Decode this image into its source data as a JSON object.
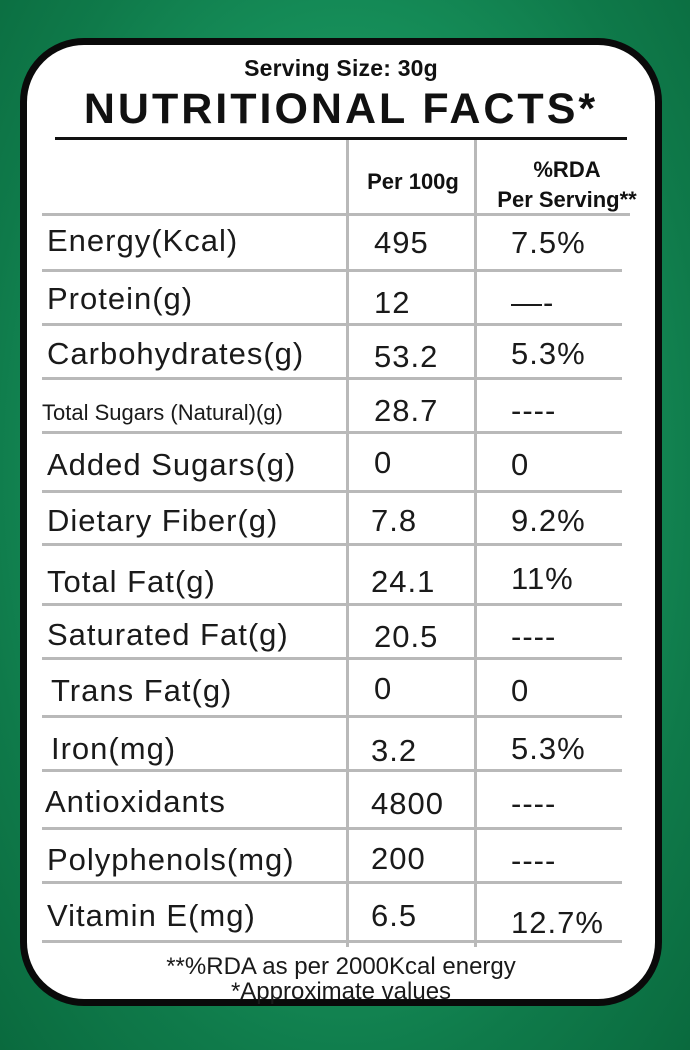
{
  "serving_size": "Serving Size: 30g",
  "title": "NUTRITIONAL FACTS*",
  "headers": {
    "per_100g": "Per 100g",
    "rda_line1": "%RDA",
    "rda_line2": "Per Serving**"
  },
  "rows": [
    {
      "label": "Energy(Kcal)",
      "per100": "495",
      "rda": "7.5%"
    },
    {
      "label": "Protein(g)",
      "per100": "12",
      "rda": "—-"
    },
    {
      "label": "Carbohydrates(g)",
      "per100": "53.2",
      "rda": "5.3%"
    },
    {
      "label": "Total Sugars (Natural)(g)",
      "per100": "28.7",
      "rda": "----"
    },
    {
      "label": "Added Sugars(g)",
      "per100": "0",
      "rda": "0"
    },
    {
      "label": "Dietary Fiber(g)",
      "per100": "7.8",
      "rda": "9.2%"
    },
    {
      "label": "Total Fat(g)",
      "per100": "24.1",
      "rda": "11%"
    },
    {
      "label": "Saturated Fat(g)",
      "per100": "20.5",
      "rda": "----"
    },
    {
      "label": "Trans Fat(g)",
      "per100": "0",
      "rda": "0"
    },
    {
      "label": "Iron(mg)",
      "per100": "3.2",
      "rda": "5.3%"
    },
    {
      "label": "Antioxidants",
      "per100": "4800",
      "rda": "----"
    },
    {
      "label": "Polyphenols(mg)",
      "per100": "200",
      "rda": "----"
    },
    {
      "label": "Vitamin E(mg)",
      "per100": "6.5",
      "rda": "12.7%"
    }
  ],
  "footer": {
    "rda_note": "**%RDA as per 2000Kcal energy",
    "approx_note": "*Approximate values"
  },
  "colors": {
    "background": "#1a9a62",
    "card_border": "#0a0a0a",
    "grid_line": "#b9b9b9"
  }
}
